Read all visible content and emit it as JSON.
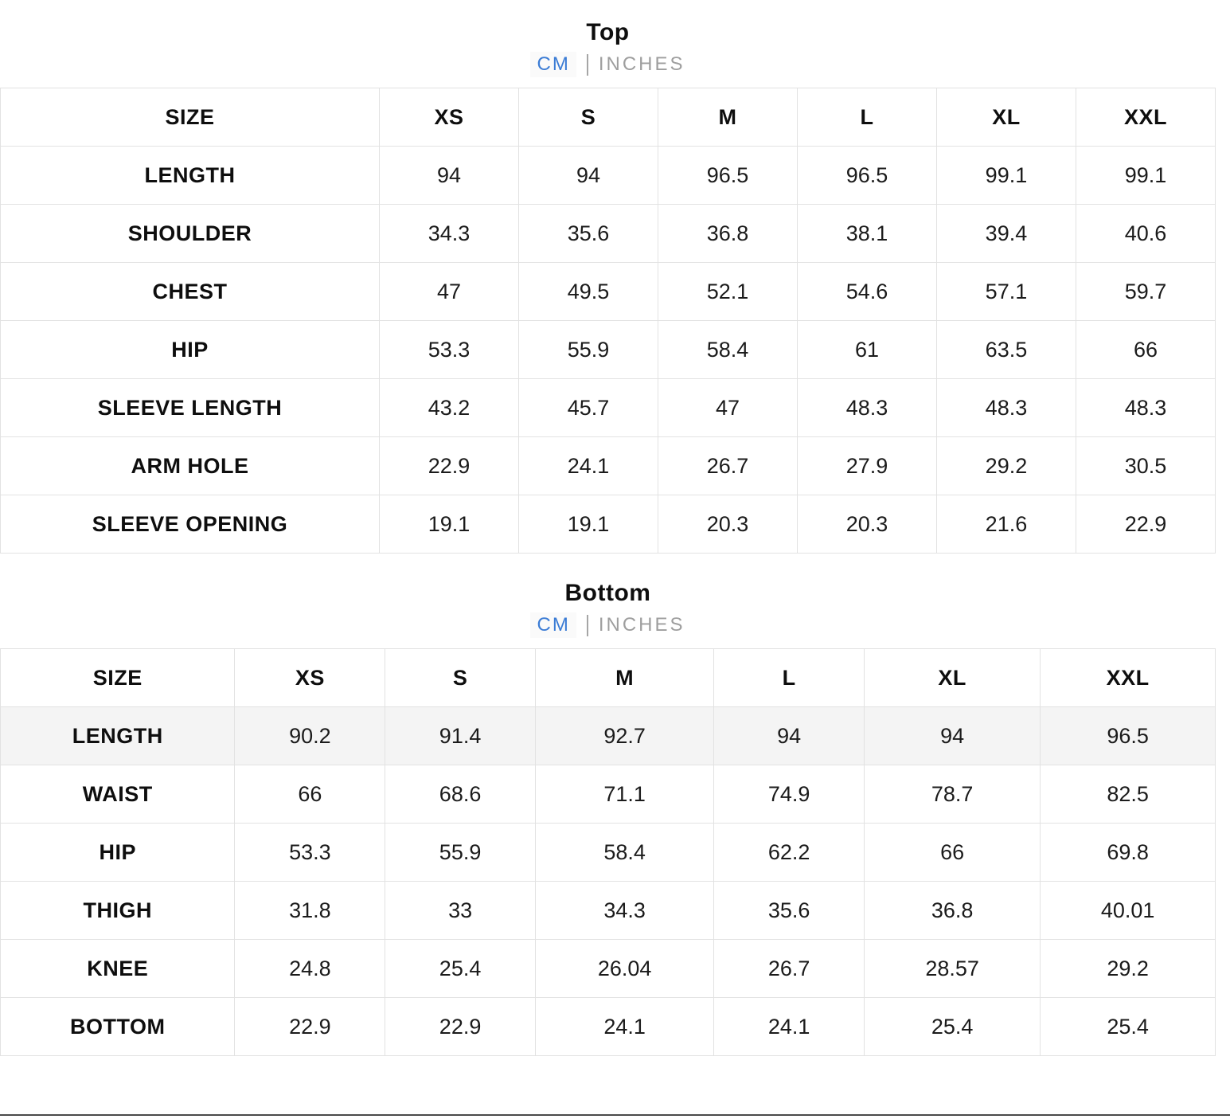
{
  "colors": {
    "accent_blue": "#3b7cd5",
    "inactive_gray": "#9e9e9e",
    "grid_line": "#e2e2e2",
    "stripe_gray": "#f4f4f4",
    "divider_dark": "#4a4a4a"
  },
  "sections": [
    {
      "title": "Top",
      "units": {
        "cm": "CM",
        "inches": "INCHES",
        "selected": "CM"
      }
    },
    {
      "title": "Bottom",
      "units": {
        "cm": "CM",
        "inches": "INCHES",
        "selected": "CM"
      }
    }
  ],
  "tables": [
    {
      "header": [
        "SIZE",
        "XS",
        "S",
        "M",
        "L",
        "XL",
        "XXL"
      ],
      "rows": [
        {
          "label": "LENGTH",
          "values": [
            "94",
            "94",
            "96.5",
            "96.5",
            "99.1",
            "99.1"
          ],
          "highlight": false
        },
        {
          "label": "SHOULDER",
          "values": [
            "34.3",
            "35.6",
            "36.8",
            "38.1",
            "39.4",
            "40.6"
          ],
          "highlight": false
        },
        {
          "label": "CHEST",
          "values": [
            "47",
            "49.5",
            "52.1",
            "54.6",
            "57.1",
            "59.7"
          ],
          "highlight": false
        },
        {
          "label": "HIP",
          "values": [
            "53.3",
            "55.9",
            "58.4",
            "61",
            "63.5",
            "66"
          ],
          "highlight": false
        },
        {
          "label": "SLEEVE LENGTH",
          "values": [
            "43.2",
            "45.7",
            "47",
            "48.3",
            "48.3",
            "48.3"
          ],
          "highlight": false
        },
        {
          "label": "ARM HOLE",
          "values": [
            "22.9",
            "24.1",
            "26.7",
            "27.9",
            "29.2",
            "30.5"
          ],
          "highlight": false
        },
        {
          "label": "SLEEVE OPENING",
          "values": [
            "19.1",
            "19.1",
            "20.3",
            "20.3",
            "21.6",
            "22.9"
          ],
          "highlight": false
        }
      ]
    },
    {
      "header": [
        "SIZE",
        "XS",
        "S",
        "M",
        "L",
        "XL",
        "XXL"
      ],
      "rows": [
        {
          "label": "LENGTH",
          "values": [
            "90.2",
            "91.4",
            "92.7",
            "94",
            "94",
            "96.5"
          ],
          "highlight": true
        },
        {
          "label": "WAIST",
          "values": [
            "66",
            "68.6",
            "71.1",
            "74.9",
            "78.7",
            "82.5"
          ],
          "highlight": false
        },
        {
          "label": "HIP",
          "values": [
            "53.3",
            "55.9",
            "58.4",
            "62.2",
            "66",
            "69.8"
          ],
          "highlight": false
        },
        {
          "label": "THIGH",
          "values": [
            "31.8",
            "33",
            "34.3",
            "35.6",
            "36.8",
            "40.01"
          ],
          "highlight": false
        },
        {
          "label": "KNEE",
          "values": [
            "24.8",
            "25.4",
            "26.04",
            "26.7",
            "28.57",
            "29.2"
          ],
          "highlight": false
        },
        {
          "label": "BOTTOM",
          "values": [
            "22.9",
            "22.9",
            "24.1",
            "24.1",
            "25.4",
            "25.4"
          ],
          "highlight": false
        }
      ]
    }
  ]
}
